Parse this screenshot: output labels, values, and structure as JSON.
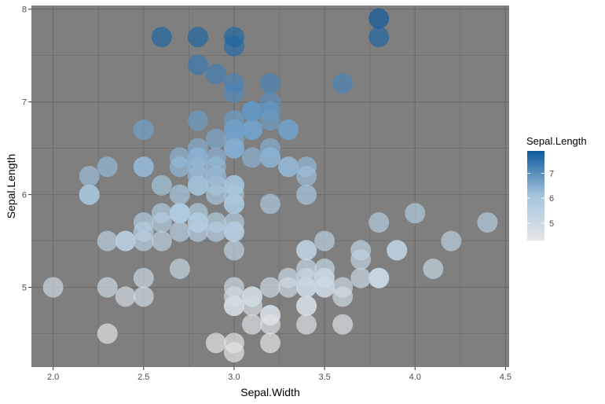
{
  "chart_data": {
    "type": "scatter",
    "title": "",
    "xlabel": "Sepal.Width",
    "ylabel": "Sepal.Length",
    "xlim": [
      1.88,
      4.52
    ],
    "ylim": [
      4.14,
      8.04
    ],
    "x_ticks": [
      2.0,
      2.5,
      3.0,
      3.5,
      4.0,
      4.5
    ],
    "x_tick_labels": [
      "2.0",
      "2.5",
      "3.0",
      "3.5",
      "4.0",
      "4.5"
    ],
    "y_ticks": [
      5,
      6,
      7,
      8
    ],
    "y_tick_labels": [
      "5",
      "6",
      "7",
      "8"
    ],
    "grid": true,
    "panel_background": "#7f7f7f",
    "gridline_color": "#6b6b6b",
    "point_alpha": 0.7,
    "color_by": "Sepal.Length",
    "color_scale": {
      "low": "#e6e6e6",
      "mid": "#a4c4dc",
      "high": "#0f5a9c",
      "min": 4.3,
      "max": 7.9
    },
    "legend": {
      "title": "Sepal.Length",
      "placement": "right",
      "ticks": [
        5,
        6,
        7
      ],
      "tick_labels": [
        "5",
        "6",
        "7"
      ]
    },
    "points": [
      {
        "x": 3.5,
        "y": 5.1
      },
      {
        "x": 3.0,
        "y": 4.9
      },
      {
        "x": 3.2,
        "y": 4.7
      },
      {
        "x": 3.1,
        "y": 4.6
      },
      {
        "x": 3.6,
        "y": 5.0
      },
      {
        "x": 3.9,
        "y": 5.4
      },
      {
        "x": 3.4,
        "y": 4.6
      },
      {
        "x": 3.4,
        "y": 5.0
      },
      {
        "x": 2.9,
        "y": 4.4
      },
      {
        "x": 3.1,
        "y": 4.9
      },
      {
        "x": 3.7,
        "y": 5.4
      },
      {
        "x": 3.4,
        "y": 4.8
      },
      {
        "x": 3.0,
        "y": 4.8
      },
      {
        "x": 3.0,
        "y": 4.3
      },
      {
        "x": 4.0,
        "y": 5.8
      },
      {
        "x": 4.4,
        "y": 5.7
      },
      {
        "x": 3.9,
        "y": 5.4
      },
      {
        "x": 3.5,
        "y": 5.1
      },
      {
        "x": 3.8,
        "y": 5.7
      },
      {
        "x": 3.8,
        "y": 5.1
      },
      {
        "x": 3.4,
        "y": 5.4
      },
      {
        "x": 3.7,
        "y": 5.1
      },
      {
        "x": 3.6,
        "y": 4.6
      },
      {
        "x": 3.3,
        "y": 5.1
      },
      {
        "x": 3.4,
        "y": 4.8
      },
      {
        "x": 3.0,
        "y": 5.0
      },
      {
        "x": 3.4,
        "y": 5.0
      },
      {
        "x": 3.5,
        "y": 5.2
      },
      {
        "x": 3.4,
        "y": 5.2
      },
      {
        "x": 3.2,
        "y": 4.7
      },
      {
        "x": 3.1,
        "y": 4.8
      },
      {
        "x": 3.4,
        "y": 5.4
      },
      {
        "x": 4.1,
        "y": 5.2
      },
      {
        "x": 4.2,
        "y": 5.5
      },
      {
        "x": 3.1,
        "y": 4.9
      },
      {
        "x": 3.2,
        "y": 5.0
      },
      {
        "x": 3.5,
        "y": 5.5
      },
      {
        "x": 3.6,
        "y": 4.9
      },
      {
        "x": 3.0,
        "y": 4.4
      },
      {
        "x": 3.4,
        "y": 5.1
      },
      {
        "x": 3.5,
        "y": 5.0
      },
      {
        "x": 2.3,
        "y": 4.5
      },
      {
        "x": 3.2,
        "y": 4.4
      },
      {
        "x": 3.5,
        "y": 5.0
      },
      {
        "x": 3.8,
        "y": 5.1
      },
      {
        "x": 3.0,
        "y": 4.8
      },
      {
        "x": 3.8,
        "y": 5.1
      },
      {
        "x": 3.2,
        "y": 4.6
      },
      {
        "x": 3.7,
        "y": 5.3
      },
      {
        "x": 3.3,
        "y": 5.0
      },
      {
        "x": 3.2,
        "y": 7.0
      },
      {
        "x": 3.2,
        "y": 6.4
      },
      {
        "x": 3.1,
        "y": 6.9
      },
      {
        "x": 2.3,
        "y": 5.5
      },
      {
        "x": 2.8,
        "y": 6.5
      },
      {
        "x": 2.8,
        "y": 5.7
      },
      {
        "x": 3.3,
        "y": 6.3
      },
      {
        "x": 2.4,
        "y": 4.9
      },
      {
        "x": 2.9,
        "y": 6.6
      },
      {
        "x": 2.7,
        "y": 5.2
      },
      {
        "x": 2.0,
        "y": 5.0
      },
      {
        "x": 3.0,
        "y": 5.9
      },
      {
        "x": 2.2,
        "y": 6.0
      },
      {
        "x": 2.9,
        "y": 6.1
      },
      {
        "x": 2.9,
        "y": 5.6
      },
      {
        "x": 3.1,
        "y": 6.7
      },
      {
        "x": 3.0,
        "y": 5.6
      },
      {
        "x": 2.7,
        "y": 5.8
      },
      {
        "x": 2.2,
        "y": 6.2
      },
      {
        "x": 2.5,
        "y": 5.6
      },
      {
        "x": 3.2,
        "y": 5.9
      },
      {
        "x": 2.8,
        "y": 6.1
      },
      {
        "x": 2.5,
        "y": 6.3
      },
      {
        "x": 2.8,
        "y": 6.1
      },
      {
        "x": 2.9,
        "y": 6.4
      },
      {
        "x": 3.0,
        "y": 6.6
      },
      {
        "x": 2.8,
        "y": 6.8
      },
      {
        "x": 3.0,
        "y": 6.7
      },
      {
        "x": 2.9,
        "y": 6.0
      },
      {
        "x": 2.6,
        "y": 5.7
      },
      {
        "x": 2.4,
        "y": 5.5
      },
      {
        "x": 2.4,
        "y": 5.5
      },
      {
        "x": 2.7,
        "y": 5.8
      },
      {
        "x": 2.7,
        "y": 6.0
      },
      {
        "x": 3.0,
        "y": 5.4
      },
      {
        "x": 3.4,
        "y": 6.0
      },
      {
        "x": 3.1,
        "y": 6.7
      },
      {
        "x": 2.3,
        "y": 6.3
      },
      {
        "x": 3.0,
        "y": 5.6
      },
      {
        "x": 2.5,
        "y": 5.5
      },
      {
        "x": 2.6,
        "y": 5.5
      },
      {
        "x": 3.0,
        "y": 6.1
      },
      {
        "x": 2.6,
        "y": 5.8
      },
      {
        "x": 2.3,
        "y": 5.0
      },
      {
        "x": 2.7,
        "y": 5.6
      },
      {
        "x": 3.0,
        "y": 5.7
      },
      {
        "x": 2.9,
        "y": 5.7
      },
      {
        "x": 2.9,
        "y": 6.2
      },
      {
        "x": 2.5,
        "y": 5.1
      },
      {
        "x": 2.8,
        "y": 5.7
      },
      {
        "x": 3.3,
        "y": 6.3
      },
      {
        "x": 2.7,
        "y": 5.8
      },
      {
        "x": 3.0,
        "y": 7.1
      },
      {
        "x": 2.9,
        "y": 6.3
      },
      {
        "x": 3.0,
        "y": 6.5
      },
      {
        "x": 3.0,
        "y": 7.6
      },
      {
        "x": 2.5,
        "y": 4.9
      },
      {
        "x": 2.9,
        "y": 7.3
      },
      {
        "x": 2.5,
        "y": 6.7
      },
      {
        "x": 3.6,
        "y": 7.2
      },
      {
        "x": 3.2,
        "y": 6.5
      },
      {
        "x": 2.7,
        "y": 6.4
      },
      {
        "x": 3.0,
        "y": 6.8
      },
      {
        "x": 2.5,
        "y": 5.7
      },
      {
        "x": 2.8,
        "y": 5.8
      },
      {
        "x": 3.2,
        "y": 6.4
      },
      {
        "x": 3.0,
        "y": 6.5
      },
      {
        "x": 3.8,
        "y": 7.7
      },
      {
        "x": 2.6,
        "y": 7.7
      },
      {
        "x": 2.2,
        "y": 6.0
      },
      {
        "x": 3.2,
        "y": 6.9
      },
      {
        "x": 2.8,
        "y": 5.6
      },
      {
        "x": 2.8,
        "y": 7.7
      },
      {
        "x": 2.7,
        "y": 6.3
      },
      {
        "x": 3.3,
        "y": 6.7
      },
      {
        "x": 3.2,
        "y": 7.2
      },
      {
        "x": 2.8,
        "y": 6.2
      },
      {
        "x": 3.0,
        "y": 6.1
      },
      {
        "x": 2.8,
        "y": 6.4
      },
      {
        "x": 3.0,
        "y": 7.2
      },
      {
        "x": 2.8,
        "y": 7.4
      },
      {
        "x": 3.8,
        "y": 7.9
      },
      {
        "x": 2.8,
        "y": 6.4
      },
      {
        "x": 2.8,
        "y": 6.3
      },
      {
        "x": 2.6,
        "y": 6.1
      },
      {
        "x": 3.0,
        "y": 7.7
      },
      {
        "x": 3.4,
        "y": 6.3
      },
      {
        "x": 3.1,
        "y": 6.4
      },
      {
        "x": 3.0,
        "y": 6.0
      },
      {
        "x": 3.1,
        "y": 6.9
      },
      {
        "x": 3.1,
        "y": 6.7
      },
      {
        "x": 3.1,
        "y": 6.9
      },
      {
        "x": 2.7,
        "y": 5.8
      },
      {
        "x": 3.2,
        "y": 6.8
      },
      {
        "x": 3.3,
        "y": 6.7
      },
      {
        "x": 3.0,
        "y": 6.7
      },
      {
        "x": 2.5,
        "y": 6.3
      },
      {
        "x": 3.0,
        "y": 6.5
      },
      {
        "x": 3.4,
        "y": 6.2
      },
      {
        "x": 3.0,
        "y": 5.9
      }
    ]
  }
}
